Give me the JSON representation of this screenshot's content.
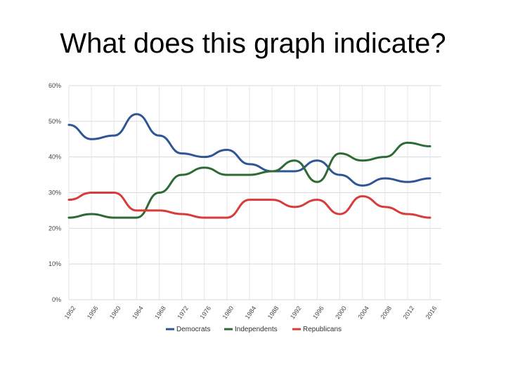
{
  "slide": {
    "title": "What does this graph indicate?"
  },
  "chart_data": {
    "type": "line",
    "title": "",
    "xlabel": "",
    "ylabel": "",
    "x": [
      1952,
      1956,
      1960,
      1964,
      1968,
      1972,
      1976,
      1980,
      1984,
      1988,
      1992,
      1996,
      2000,
      2004,
      2008,
      2012,
      2016
    ],
    "x_tick_labels": [
      "1952",
      "1956",
      "1960",
      "1964",
      "1968",
      "1972",
      "1976",
      "1980",
      "1984",
      "1988",
      "1992",
      "1996",
      "2000",
      "2004",
      "2008",
      "2012",
      "2016"
    ],
    "ylim": [
      0,
      60
    ],
    "y_ticks": [
      0,
      10,
      20,
      30,
      40,
      50,
      60
    ],
    "y_tick_labels": [
      "0%",
      "10%",
      "20%",
      "30%",
      "40%",
      "50%",
      "60%"
    ],
    "grid": true,
    "legend_position": "bottom",
    "series": [
      {
        "name": "Democrats",
        "color": "#2f5597",
        "values": [
          49,
          45,
          46,
          52,
          46,
          41,
          40,
          42,
          38,
          36,
          36,
          39,
          35,
          32,
          34,
          33,
          34
        ]
      },
      {
        "name": "Independents",
        "color": "#2e6b34",
        "values": [
          23,
          24,
          23,
          23,
          30,
          35,
          37,
          35,
          35,
          36,
          39,
          33,
          41,
          39,
          40,
          44,
          43
        ]
      },
      {
        "name": "Republicans",
        "color": "#d93a3a",
        "values": [
          28,
          30,
          30,
          25,
          25,
          24,
          23,
          23,
          28,
          28,
          26,
          28,
          24,
          29,
          26,
          24,
          23
        ]
      }
    ]
  }
}
